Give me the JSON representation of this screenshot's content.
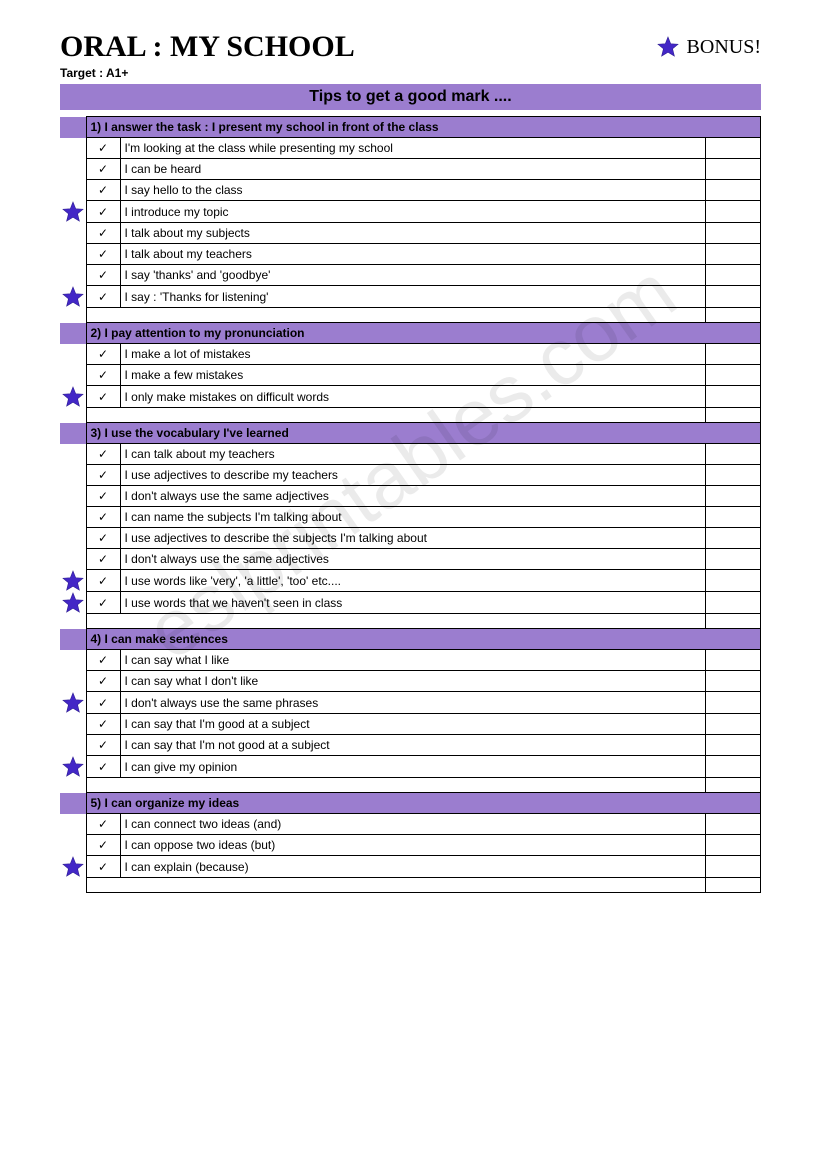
{
  "colors": {
    "purple_bar": "#9b7dcf",
    "star_fill": "#4327c6",
    "star_stroke": "#2b1a8f",
    "border": "#000000",
    "background": "#ffffff",
    "watermark": "rgba(0,0,0,0.08)"
  },
  "fonts": {
    "title_family": "Times New Roman",
    "body_family": "Verdana",
    "title_size_pt": 30,
    "bonus_size_pt": 20,
    "section_size_pt": 12,
    "item_size_pt": 12
  },
  "header": {
    "title": "ORAL : MY SCHOOL",
    "bonus_label": "BONUS!",
    "target_label": "Target : A1+",
    "tips_bar": "Tips to get a good mark ...."
  },
  "watermark": "eslprintables.com",
  "check_glyph": "✓",
  "sections": [
    {
      "title": "1) I answer the task : I present my school in front of the class",
      "items": [
        {
          "text": "I'm looking at the class while presenting my school",
          "bonus": false
        },
        {
          "text": "I can be heard",
          "bonus": false
        },
        {
          "text": "I say hello to the class",
          "bonus": false
        },
        {
          "text": "I introduce my topic",
          "bonus": true
        },
        {
          "text": "I talk about my subjects",
          "bonus": false
        },
        {
          "text": "I talk about my teachers",
          "bonus": false
        },
        {
          "text": "I say 'thanks' and 'goodbye'",
          "bonus": false
        },
        {
          "text": "I say : 'Thanks for listening'",
          "bonus": true
        }
      ]
    },
    {
      "title": "2) I pay attention to my pronunciation",
      "items": [
        {
          "text": "I make a lot of mistakes",
          "bonus": false
        },
        {
          "text": "I make a few mistakes",
          "bonus": false
        },
        {
          "text": "I only make mistakes on difficult words",
          "bonus": true
        }
      ]
    },
    {
      "title": "3) I use the vocabulary I've learned",
      "items": [
        {
          "text": "I can talk about my teachers",
          "bonus": false
        },
        {
          "text": "I use adjectives to describe my teachers",
          "bonus": false
        },
        {
          "text": "I don't always use the same adjectives",
          "bonus": false
        },
        {
          "text": "I can name the subjects I'm talking about",
          "bonus": false
        },
        {
          "text": "I use adjectives to describe the subjects I'm talking about",
          "bonus": false
        },
        {
          "text": "I don't always use the same adjectives",
          "bonus": false
        },
        {
          "text": "I use words like 'very', 'a little', 'too' etc....",
          "bonus": true
        },
        {
          "text": "I use words that we haven't seen in class",
          "bonus": true
        }
      ]
    },
    {
      "title": "4) I can make sentences",
      "items": [
        {
          "text": "I can say what I like",
          "bonus": false
        },
        {
          "text": "I can say what I don't like",
          "bonus": false
        },
        {
          "text": "I don't always use the same phrases",
          "bonus": true
        },
        {
          "text": "I can say that I'm good at a subject",
          "bonus": false
        },
        {
          "text": "I can say that I'm not good at a subject",
          "bonus": false
        },
        {
          "text": "I can give my opinion",
          "bonus": true
        }
      ]
    },
    {
      "title": "5) I can organize my ideas",
      "items": [
        {
          "text": "I can connect two ideas (and)",
          "bonus": false
        },
        {
          "text": "I can oppose two ideas (but)",
          "bonus": false
        },
        {
          "text": "I can explain (because)",
          "bonus": true
        }
      ]
    }
  ]
}
